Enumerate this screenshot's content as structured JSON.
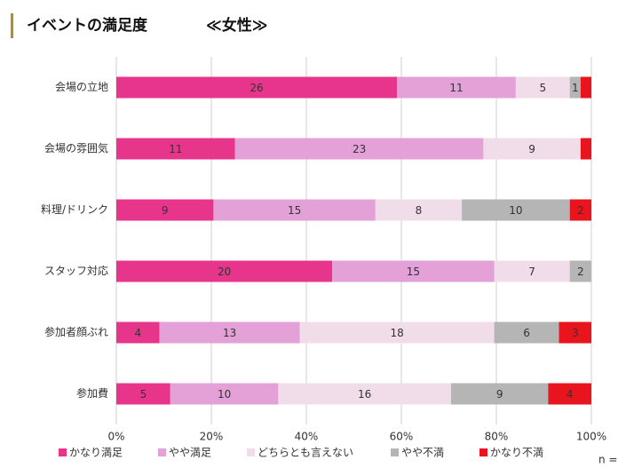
{
  "chart_data": {
    "type": "stacked_bar_100",
    "title": "イベントの満足度",
    "subtitle": "≪女性≫",
    "note": "n =",
    "categories": [
      "会場の立地",
      "会場の雰囲気",
      "料理/ドリンク",
      "スタッフ対応",
      "参加者顔ぶれ",
      "参加費"
    ],
    "series": [
      {
        "name": "かなり満足",
        "color": "#e8358c",
        "values": [
          26,
          11,
          9,
          20,
          4,
          5
        ],
        "value_labels": [
          "26",
          "11",
          "9",
          "20",
          "4",
          "5"
        ]
      },
      {
        "name": "やや満足",
        "color": "#e3a1d8",
        "values": [
          11,
          23,
          15,
          15,
          13,
          10
        ],
        "value_labels": [
          "11",
          "23",
          "15",
          "15",
          "13",
          "10"
        ]
      },
      {
        "name": "どちらとも言えない",
        "color": "#f1dcea",
        "values": [
          5,
          9,
          8,
          7,
          18,
          16
        ],
        "value_labels": [
          "5",
          "9",
          "8",
          "7",
          "18",
          "16"
        ]
      },
      {
        "name": "やや不満",
        "color": "#b5b5b5",
        "values": [
          1,
          0,
          10,
          2,
          6,
          9
        ],
        "value_labels": [
          "1",
          null,
          "10",
          "2",
          "6",
          "9"
        ]
      },
      {
        "name": "かなり不満",
        "color": "#e8141e",
        "values": [
          1,
          1,
          2,
          0,
          3,
          4
        ],
        "value_labels": [
          null,
          null,
          "2",
          null,
          "3",
          "4"
        ]
      }
    ],
    "xlim": [
      0,
      100
    ],
    "xticks": [
      {
        "value": 0,
        "label": "0%"
      },
      {
        "value": 20,
        "label": "20%"
      },
      {
        "value": 40,
        "label": "40%"
      },
      {
        "value": 60,
        "label": "60%"
      },
      {
        "value": 80,
        "label": "80%"
      },
      {
        "value": 100,
        "label": "100%"
      }
    ],
    "grid": true
  }
}
